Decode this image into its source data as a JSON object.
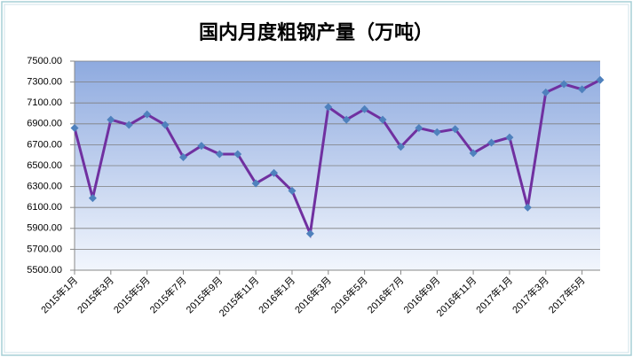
{
  "chart_data": {
    "type": "line",
    "title": "国内月度粗钢产量（万吨）",
    "categories": [
      "2015年1月",
      null,
      "2015年3月",
      null,
      "2015年5月",
      null,
      "2015年7月",
      null,
      "2015年9月",
      null,
      "2015年11月",
      null,
      "2016年1月",
      null,
      "2016年3月",
      null,
      "2016年5月",
      null,
      "2016年7月",
      null,
      "2016年9月",
      null,
      "2016年11月",
      null,
      "2017年1月",
      null,
      "2017年3月",
      null,
      "2017年5月",
      null
    ],
    "series": [
      {
        "name": "粗钢产量",
        "color": "#7030a0",
        "marker_color": "#4f81bd",
        "values": [
          6860,
          6190,
          6940,
          6890,
          6990,
          6890,
          6580,
          6690,
          6610,
          6610,
          6330,
          6430,
          6260,
          5850,
          7060,
          6940,
          7040,
          6940,
          6680,
          6860,
          6820,
          6850,
          6620,
          6720,
          6770,
          6100,
          7200,
          7280,
          7230,
          7320
        ]
      }
    ],
    "ylim": [
      5500,
      7500
    ],
    "yticks": [
      {
        "value": 5500,
        "label": "5500.00"
      },
      {
        "value": 5700,
        "label": "5700.00"
      },
      {
        "value": 5900,
        "label": "5900.00"
      },
      {
        "value": 6100,
        "label": "6100.00"
      },
      {
        "value": 6300,
        "label": "6300.00"
      },
      {
        "value": 6500,
        "label": "6500.00"
      },
      {
        "value": 6700,
        "label": "6700.00"
      },
      {
        "value": 6900,
        "label": "6900.00"
      },
      {
        "value": 7100,
        "label": "7100.00"
      },
      {
        "value": 7300,
        "label": "7300.00"
      },
      {
        "value": 7500,
        "label": "7500.00"
      }
    ],
    "grid": true
  }
}
